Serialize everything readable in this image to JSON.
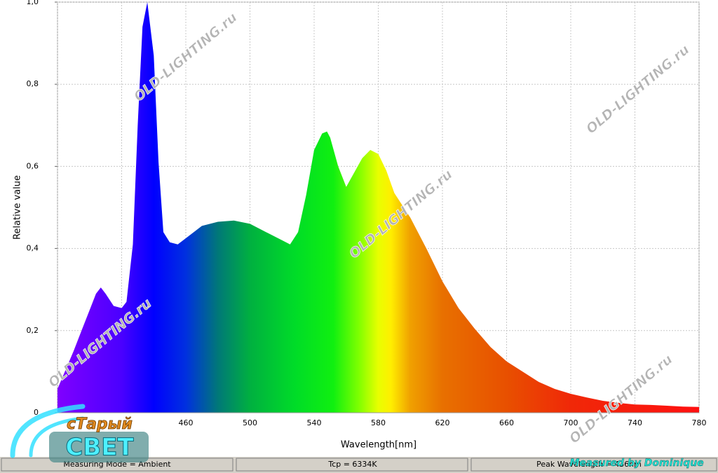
{
  "chart_data": {
    "type": "area",
    "x_label": "Wavelength[nm]",
    "y_label": "Relative value",
    "x": [
      380,
      390,
      395,
      400,
      404,
      407,
      410,
      415,
      420,
      423,
      427,
      430,
      433,
      436,
      440,
      443,
      446,
      450,
      455,
      460,
      465,
      470,
      480,
      490,
      500,
      510,
      520,
      525,
      530,
      535,
      540,
      545,
      548,
      550,
      555,
      560,
      565,
      570,
      575,
      580,
      585,
      590,
      600,
      610,
      620,
      630,
      640,
      650,
      660,
      670,
      680,
      690,
      700,
      710,
      720,
      730,
      740,
      750,
      760,
      770,
      780
    ],
    "values": [
      0.058,
      0.15,
      0.2,
      0.25,
      0.29,
      0.305,
      0.29,
      0.26,
      0.255,
      0.27,
      0.41,
      0.7,
      0.94,
      1.0,
      0.87,
      0.61,
      0.44,
      0.415,
      0.41,
      0.425,
      0.44,
      0.455,
      0.465,
      0.468,
      0.46,
      0.44,
      0.42,
      0.41,
      0.44,
      0.53,
      0.64,
      0.68,
      0.685,
      0.67,
      0.6,
      0.55,
      0.585,
      0.62,
      0.64,
      0.63,
      0.59,
      0.535,
      0.475,
      0.4,
      0.32,
      0.255,
      0.205,
      0.16,
      0.125,
      0.1,
      0.075,
      0.058,
      0.046,
      0.037,
      0.029,
      0.024,
      0.02,
      0.019,
      0.017,
      0.015,
      0.014
    ],
    "xlim": [
      380,
      780
    ],
    "ylim": [
      0,
      1
    ],
    "xticks": [
      {
        "value": 380,
        "label": null
      },
      {
        "value": 420,
        "label": null
      },
      460,
      500,
      540,
      580,
      620,
      660,
      700,
      740,
      780
    ],
    "yticks": [
      0,
      {
        "value": 0.2,
        "label": "0,2"
      },
      {
        "value": 0.4,
        "label": "0,4"
      },
      {
        "value": 0.6,
        "label": "0,6"
      },
      {
        "value": 0.8,
        "label": "0,8"
      },
      {
        "value": 1,
        "label": "1,0"
      }
    ],
    "grid": true
  },
  "status_bar": [
    "Measuring Mode = Ambient",
    "Tcp = 6334K",
    "Peak Wavelength = 436nm"
  ],
  "watermark": "OLD-LIGHTING.ru",
  "logo": {
    "line1": "сТарый",
    "line2": "СВЕТ"
  },
  "credit": "Measured by Dominique"
}
